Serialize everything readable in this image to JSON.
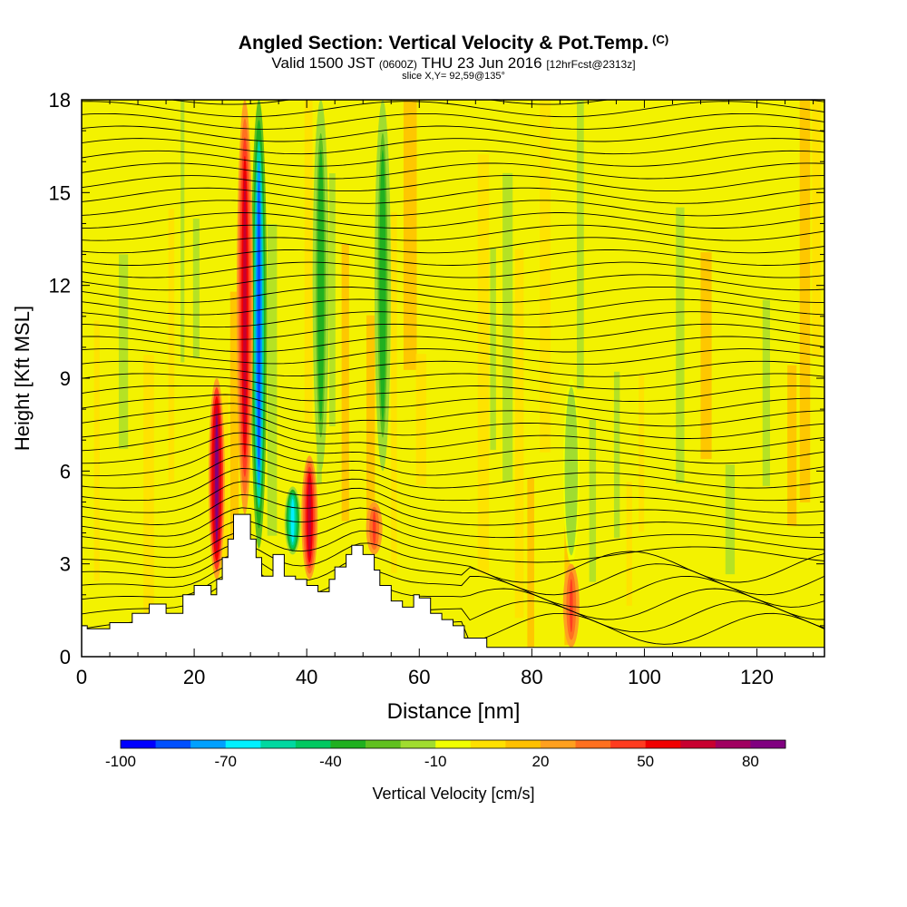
{
  "header": {
    "title": "Angled Section: Vertical Velocity & Pot.Temp.",
    "title_suffix": "(C)",
    "valid_prefix": "Valid 1500 JST",
    "valid_utc": "(0600Z)",
    "valid_date": "THU 23 Jun 2016",
    "forecast": "[12hrFcst@2313z]",
    "slice": "slice X,Y= 92,59@135°"
  },
  "colorbar": {
    "label": "Vertical Velocity [cm/s]",
    "tick_labels": [
      "-100",
      "-70",
      "-40",
      "-10",
      "20",
      "50",
      "80"
    ],
    "colors": [
      "#0000ff",
      "#0050ff",
      "#00a0ff",
      "#00f0ff",
      "#00d8a0",
      "#00c860",
      "#20b020",
      "#60c020",
      "#a0dc30",
      "#f0ff00",
      "#ffe000",
      "#ffc000",
      "#ffa020",
      "#ff7020",
      "#ff3c20",
      "#f00000",
      "#c80030",
      "#a00060",
      "#800080"
    ]
  },
  "chart_data": {
    "type": "heatmap",
    "title": "Angled Section: Vertical Velocity & Pot.Temp.",
    "xlabel": "Distance [nm]",
    "ylabel": "Height [Kft MSL]",
    "xlim": [
      0,
      132
    ],
    "ylim": [
      0,
      18
    ],
    "x_ticks": [
      "0",
      "20",
      "40",
      "60",
      "80",
      "100",
      "120"
    ],
    "y_ticks": [
      "0",
      "3",
      "6",
      "9",
      "12",
      "15",
      "18"
    ],
    "background_range": [
      -10,
      20
    ],
    "terrain": [
      [
        0,
        1.0
      ],
      [
        1,
        1.0
      ],
      [
        1,
        0.9
      ],
      [
        5,
        0.9
      ],
      [
        5,
        1.1
      ],
      [
        9,
        1.1
      ],
      [
        9,
        1.4
      ],
      [
        12,
        1.4
      ],
      [
        12,
        1.7
      ],
      [
        15,
        1.7
      ],
      [
        15,
        1.4
      ],
      [
        18,
        1.4
      ],
      [
        18,
        2.0
      ],
      [
        20,
        2.0
      ],
      [
        20,
        2.3
      ],
      [
        23,
        2.3
      ],
      [
        23,
        2.0
      ],
      [
        24,
        2.0
      ],
      [
        24,
        2.5
      ],
      [
        25,
        2.5
      ],
      [
        25,
        3.2
      ],
      [
        26,
        3.2
      ],
      [
        26,
        3.8
      ],
      [
        27,
        3.8
      ],
      [
        27,
        4.6
      ],
      [
        30,
        4.6
      ],
      [
        30,
        3.8
      ],
      [
        31,
        3.8
      ],
      [
        31,
        3.2
      ],
      [
        32,
        3.2
      ],
      [
        32,
        2.6
      ],
      [
        34,
        2.6
      ],
      [
        34,
        3.3
      ],
      [
        36,
        3.3
      ],
      [
        36,
        2.6
      ],
      [
        38,
        2.6
      ],
      [
        38,
        2.5
      ],
      [
        40,
        2.5
      ],
      [
        40,
        2.3
      ],
      [
        42,
        2.3
      ],
      [
        42,
        2.1
      ],
      [
        44,
        2.1
      ],
      [
        44,
        2.5
      ],
      [
        45,
        2.5
      ],
      [
        45,
        2.9
      ],
      [
        47,
        2.9
      ],
      [
        47,
        3.3
      ],
      [
        48,
        3.3
      ],
      [
        48,
        3.6
      ],
      [
        50,
        3.6
      ],
      [
        50,
        3.3
      ],
      [
        52,
        3.3
      ],
      [
        52,
        2.8
      ],
      [
        53,
        2.8
      ],
      [
        53,
        2.3
      ],
      [
        55,
        2.3
      ],
      [
        55,
        1.8
      ],
      [
        57,
        1.8
      ],
      [
        57,
        1.6
      ],
      [
        59,
        1.6
      ],
      [
        59,
        2.0
      ],
      [
        60,
        2.0
      ],
      [
        60,
        1.9
      ],
      [
        62,
        1.9
      ],
      [
        62,
        1.4
      ],
      [
        64,
        1.4
      ],
      [
        64,
        1.2
      ],
      [
        66,
        1.2
      ],
      [
        66,
        1.0
      ],
      [
        68,
        1.0
      ],
      [
        68,
        0.6
      ],
      [
        72,
        0.6
      ],
      [
        72,
        0.3
      ],
      [
        132,
        0.3
      ]
    ],
    "updrafts": [
      {
        "center_nm": 24.0,
        "from_kft": 2.5,
        "to_kft": 9.0,
        "max_cm_s": 80
      },
      {
        "center_nm": 29.0,
        "from_kft": 4.6,
        "to_kft": 18.0,
        "max_cm_s": 60
      },
      {
        "center_nm": 40.5,
        "from_kft": 2.5,
        "to_kft": 6.5,
        "max_cm_s": 60
      },
      {
        "center_nm": 52.0,
        "from_kft": 3.3,
        "to_kft": 5.0,
        "max_cm_s": 45
      },
      {
        "center_nm": 87.0,
        "from_kft": 0.3,
        "to_kft": 3.0,
        "max_cm_s": 40
      }
    ],
    "downdrafts": [
      {
        "center_nm": 31.5,
        "from_kft": 3.5,
        "to_kft": 18.0,
        "min_cm_s": -90
      },
      {
        "center_nm": 37.5,
        "from_kft": 3.3,
        "to_kft": 5.5,
        "min_cm_s": -70
      },
      {
        "center_nm": 42.5,
        "from_kft": 6.0,
        "to_kft": 18.0,
        "min_cm_s": -40
      },
      {
        "center_nm": 53.5,
        "from_kft": 6.0,
        "to_kft": 18.0,
        "min_cm_s": -40
      },
      {
        "center_nm": 87.0,
        "from_kft": 3.0,
        "to_kft": 9.0,
        "min_cm_s": -20
      }
    ],
    "isentrope_count": 44
  }
}
